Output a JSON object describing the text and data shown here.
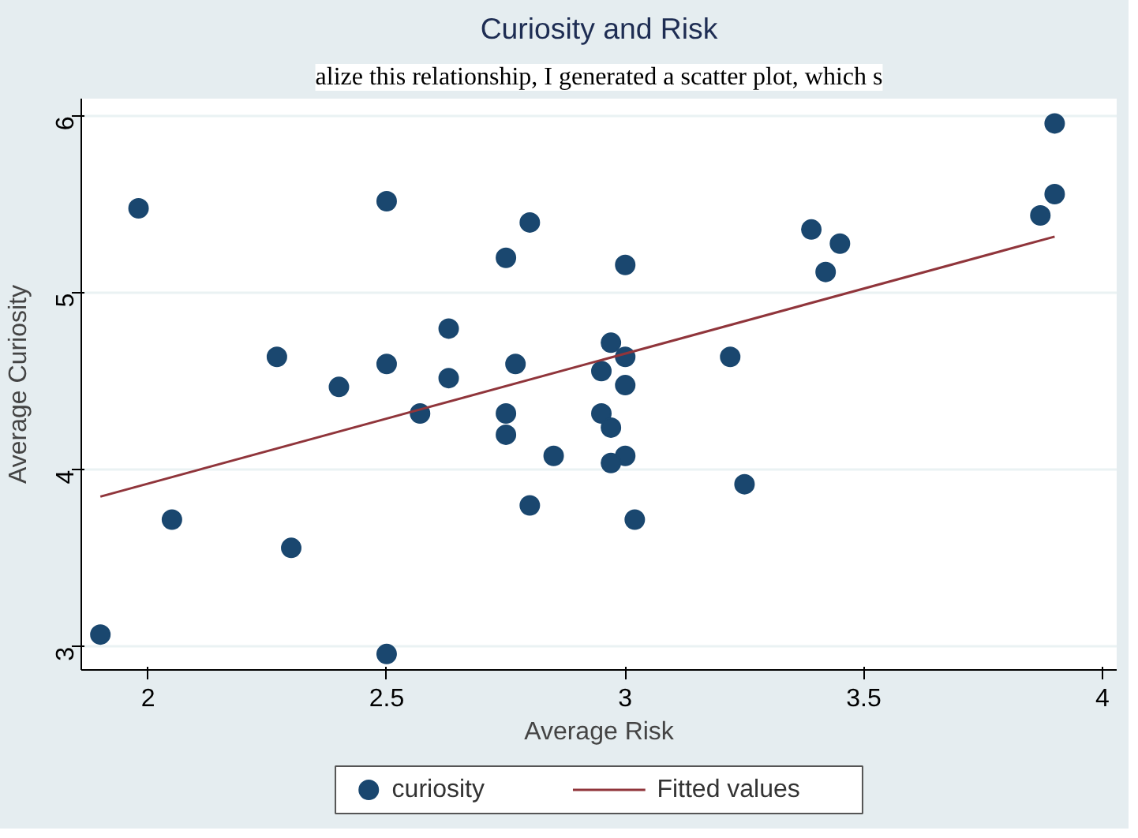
{
  "chart_data": {
    "type": "scatter",
    "title": "Curiosity and Risk",
    "xlabel": "Average Risk",
    "ylabel": "Average Curiosity",
    "annotations": [
      "alize this relationship, I generated a scatter plot, which s"
    ],
    "series": [
      {
        "name": "curiosity",
        "type": "scatter",
        "color": "#1a476f",
        "marker": "circle",
        "x": [
          1.9,
          1.98,
          2.5,
          2.8,
          2.75,
          2.63,
          2.27,
          2.5,
          2.4,
          2.63,
          2.77,
          2.57,
          2.75,
          2.75,
          2.85,
          2.8,
          2.05,
          2.3,
          2.5,
          3.9,
          3.9,
          3.87,
          3.39,
          3.45,
          3.42,
          3.0,
          2.97,
          3.0,
          2.95,
          3.0,
          3.22,
          2.95,
          2.97,
          3.0,
          2.97,
          3.25,
          3.02
        ],
        "values": [
          3.07,
          5.48,
          5.52,
          5.4,
          5.2,
          4.8,
          4.64,
          4.6,
          4.47,
          4.52,
          4.6,
          4.32,
          4.32,
          4.2,
          4.08,
          3.8,
          3.72,
          3.56,
          2.96,
          5.96,
          5.56,
          5.44,
          5.36,
          5.28,
          5.12,
          5.16,
          4.72,
          4.64,
          4.56,
          4.48,
          4.64,
          4.32,
          4.24,
          4.08,
          4.04,
          3.92,
          3.72
        ]
      },
      {
        "name": "Fitted values",
        "type": "line",
        "color": "#90353b",
        "line_style": "solid",
        "x": [
          1.9,
          3.9
        ],
        "values": [
          3.85,
          5.32
        ]
      }
    ],
    "xlim": [
      1.86,
      4.03
    ],
    "ylim": [
      2.87,
      6.1
    ],
    "xticks": [
      2,
      2.5,
      3,
      3.5,
      4
    ],
    "yticks": [
      3,
      4,
      5,
      6
    ],
    "grid": "y",
    "legend": "bottom"
  }
}
